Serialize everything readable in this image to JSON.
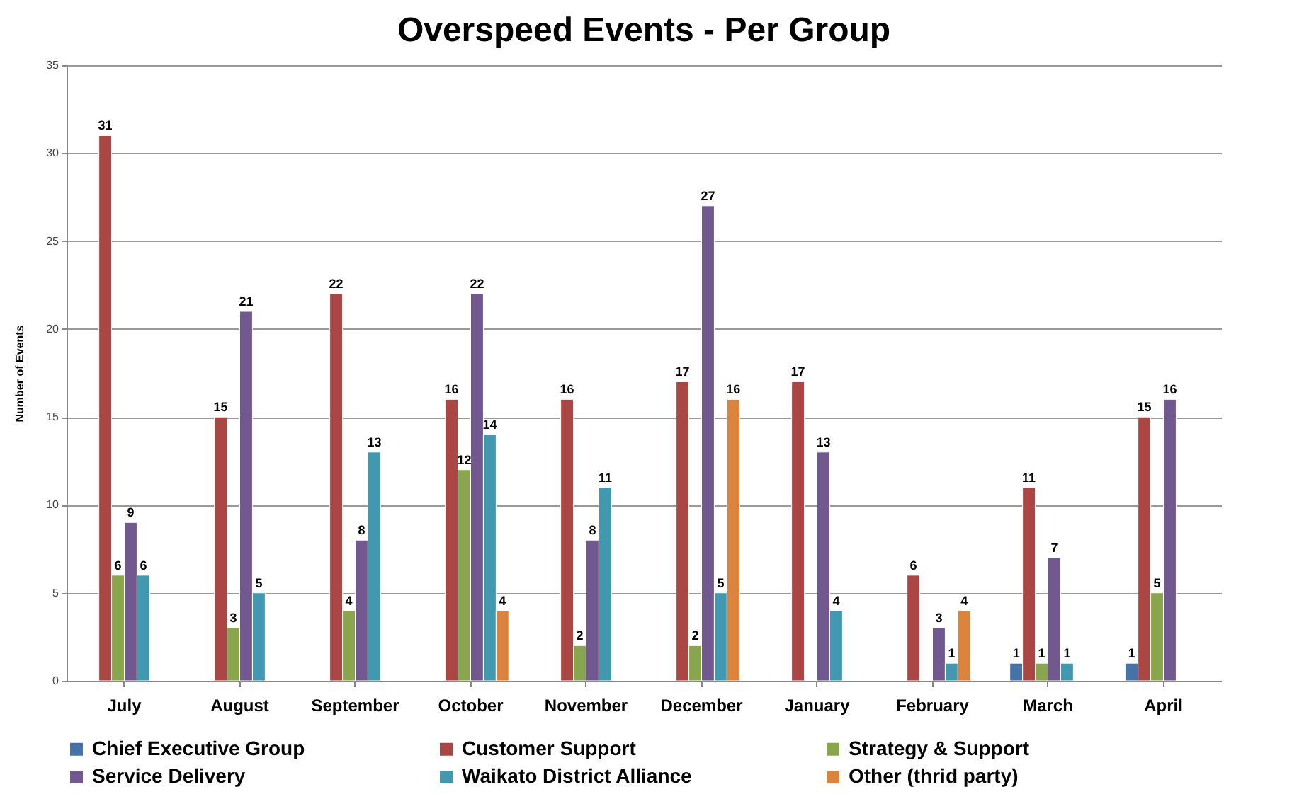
{
  "chart_data": {
    "type": "bar",
    "title": "Overspeed Events - Per Group",
    "ylabel": "Number of Events",
    "categories": [
      "July",
      "August",
      "September",
      "October",
      "November",
      "December",
      "January",
      "February",
      "March",
      "April"
    ],
    "series": [
      {
        "name": "Chief Executive Group",
        "color": "#4572a7",
        "values": [
          null,
          null,
          null,
          null,
          null,
          null,
          null,
          null,
          1,
          1
        ]
      },
      {
        "name": "Customer Support",
        "color": "#aa4643",
        "values": [
          31,
          15,
          22,
          16,
          16,
          17,
          17,
          6,
          11,
          15
        ]
      },
      {
        "name": "Strategy & Support",
        "color": "#89a54e",
        "values": [
          6,
          3,
          4,
          12,
          2,
          2,
          null,
          null,
          1,
          5
        ]
      },
      {
        "name": "Service Delivery",
        "color": "#71588f",
        "values": [
          9,
          21,
          8,
          22,
          8,
          27,
          13,
          3,
          7,
          16
        ]
      },
      {
        "name": "Waikato District Alliance",
        "color": "#4198af",
        "values": [
          6,
          5,
          13,
          14,
          11,
          5,
          4,
          1,
          1,
          null
        ]
      },
      {
        "name": "Other (thrid party)",
        "color": "#db843d",
        "values": [
          null,
          null,
          null,
          4,
          null,
          16,
          null,
          4,
          null,
          null
        ]
      }
    ],
    "ylim": [
      0,
      35
    ],
    "yticks": [
      0,
      5,
      10,
      15,
      20,
      25,
      30,
      35
    ],
    "grid": "y",
    "legend": "bottom",
    "data_labels": true
  }
}
